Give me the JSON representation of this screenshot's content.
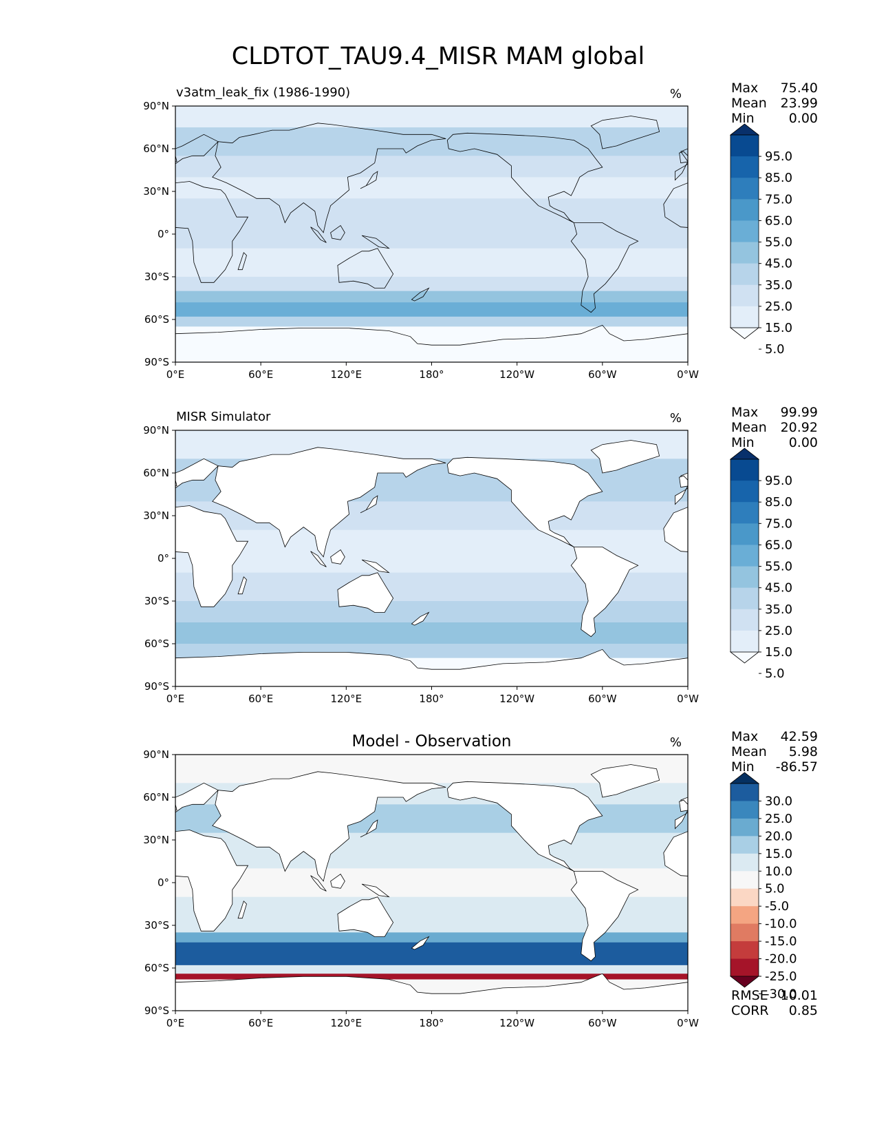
{
  "figure": {
    "title": "CLDTOT_TAU9.4_MISR MAM global"
  },
  "axes": {
    "lat_ticks": [
      "90°N",
      "60°N",
      "30°N",
      "0°",
      "30°S",
      "60°S",
      "90°S"
    ],
    "lon_ticks": [
      "0°E",
      "60°E",
      "120°E",
      "180°",
      "120°W",
      "60°W",
      "0°W"
    ]
  },
  "panels": [
    {
      "id": "test",
      "left_title": "v3atm_leak_fix (1986-1990)",
      "center_title": "",
      "units": "%",
      "stats": [
        {
          "label": "Max",
          "value": "75.40"
        },
        {
          "label": "Mean",
          "value": "23.99"
        },
        {
          "label": "Min",
          "value": "0.00"
        }
      ],
      "colorbar": {
        "labels": [
          "95.0",
          "85.0",
          "75.0",
          "65.0",
          "55.0",
          "45.0",
          "35.0",
          "25.0",
          "15.0",
          "5.0"
        ],
        "colors": [
          "#f7fbff",
          "#e3eef9",
          "#d0e1f2",
          "#b7d4ea",
          "#94c4df",
          "#6aaed6",
          "#4a98c9",
          "#2e7ebc",
          "#1764ab",
          "#084a91",
          "#08306b"
        ]
      }
    },
    {
      "id": "reference",
      "left_title": "MISR Simulator",
      "center_title": "",
      "units": "%",
      "stats": [
        {
          "label": "Max",
          "value": "99.99"
        },
        {
          "label": "Mean",
          "value": "20.92"
        },
        {
          "label": "Min",
          "value": "0.00"
        }
      ],
      "colorbar": {
        "labels": [
          "95.0",
          "85.0",
          "75.0",
          "65.0",
          "55.0",
          "45.0",
          "35.0",
          "25.0",
          "15.0",
          "5.0"
        ],
        "colors": [
          "#f7fbff",
          "#e3eef9",
          "#d0e1f2",
          "#b7d4ea",
          "#94c4df",
          "#6aaed6",
          "#4a98c9",
          "#2e7ebc",
          "#1764ab",
          "#084a91",
          "#08306b"
        ]
      }
    },
    {
      "id": "diff",
      "left_title": "",
      "center_title": "Model - Observation",
      "units": "%",
      "stats": [
        {
          "label": "Max",
          "value": "42.59"
        },
        {
          "label": "Mean",
          "value": "5.98"
        },
        {
          "label": "Min",
          "value": "-86.57"
        }
      ],
      "bottom_stats": [
        {
          "label": "RMSE",
          "value": "10.01"
        },
        {
          "label": "CORR",
          "value": "0.85"
        }
      ],
      "colorbar": {
        "labels": [
          "30.0",
          "25.0",
          "20.0",
          "15.0",
          "10.0",
          "5.0",
          "-5.0",
          "-10.0",
          "-15.0",
          "-20.0",
          "-25.0",
          "-30.0"
        ],
        "colors": [
          "#67001f",
          "#a51429",
          "#c43c3c",
          "#e07b62",
          "#f4a582",
          "#fbd7c4",
          "#f7f7f7",
          "#dbeaf2",
          "#a9cfe5",
          "#6aabd0",
          "#3a87bd",
          "#1c5c9e",
          "#053061"
        ]
      }
    }
  ]
}
